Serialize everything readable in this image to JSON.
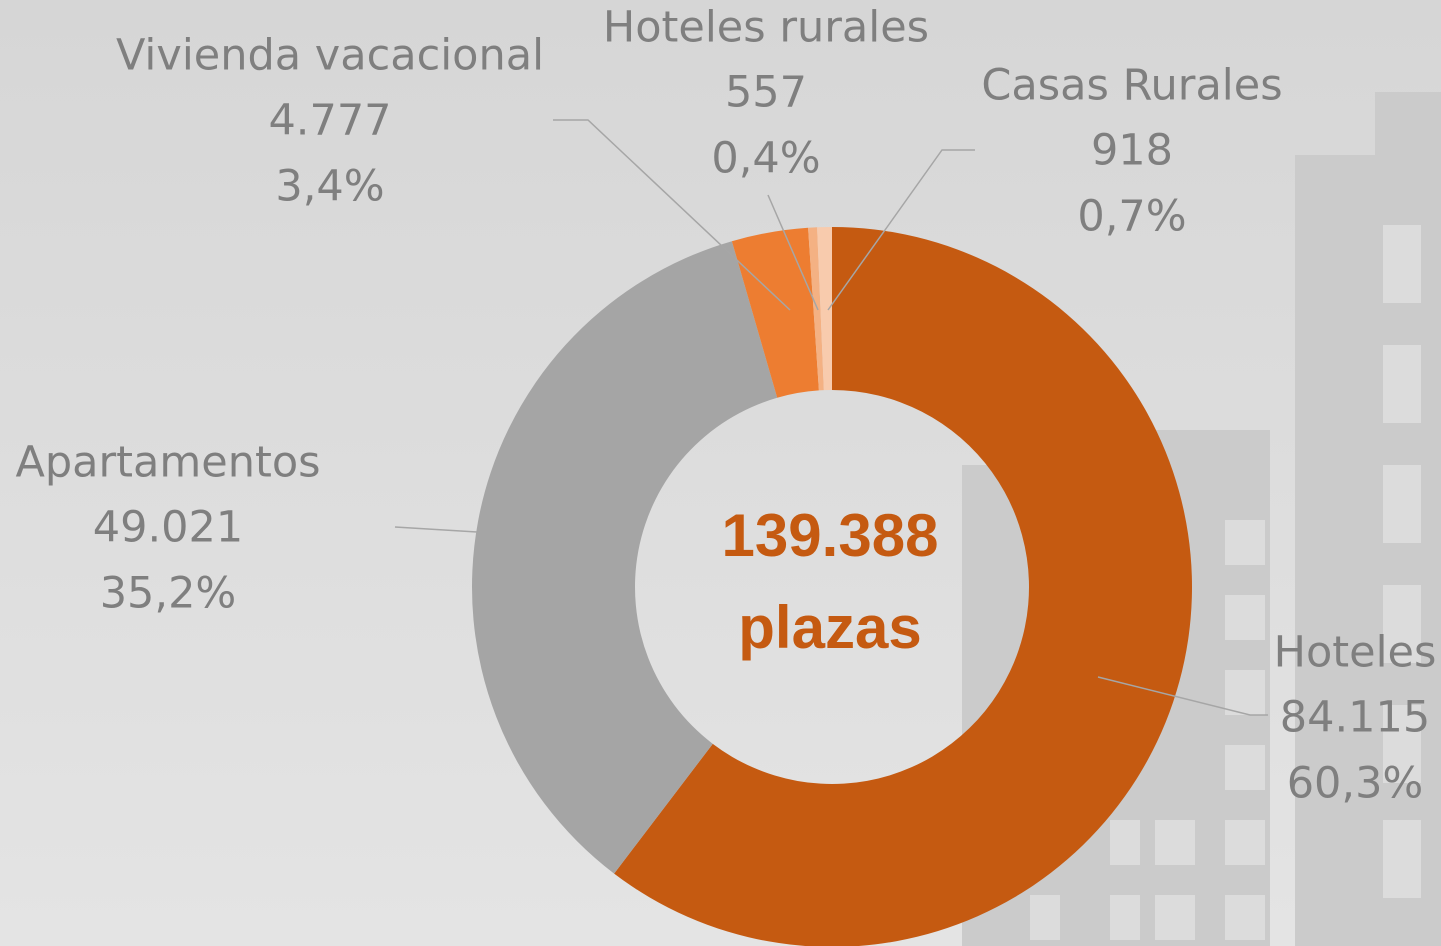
{
  "chart_data": {
    "type": "donut",
    "categories": [
      "Hoteles",
      "Apartamentos",
      "Vivienda vacacional",
      "Hoteles rurales",
      "Casas Rurales"
    ],
    "values": [
      84115,
      49021,
      4777,
      557,
      918
    ],
    "value_labels": [
      "84.115",
      "49.021",
      "4.777",
      "557",
      "918"
    ],
    "percents": [
      60.3,
      35.2,
      3.4,
      0.4,
      0.7
    ],
    "percent_labels": [
      "60,3%",
      "35,2%",
      "3,4%",
      "0,4%",
      "0,7%"
    ],
    "colors": [
      "#c55a11",
      "#a5a5a5",
      "#ed7d31",
      "#f4b183",
      "#f8cbad"
    ],
    "center_text": [
      "139.388",
      "plazas"
    ]
  }
}
